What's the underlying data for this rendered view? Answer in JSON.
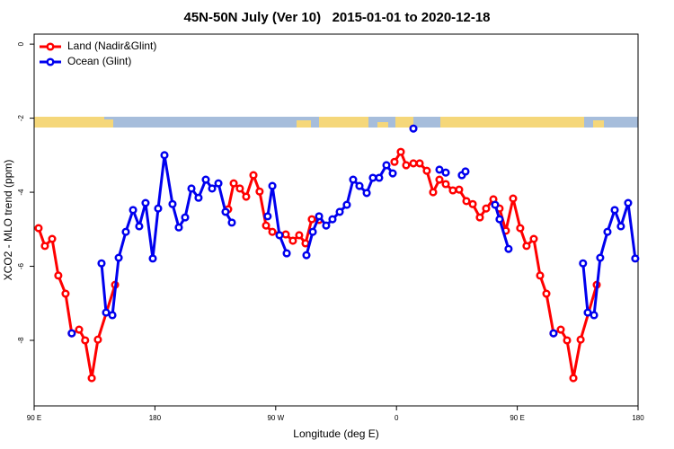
{
  "chart_data": {
    "type": "line",
    "title": "45N-50N July (Ver 10)   2015-01-01 to 2020-12-18",
    "x_label": "Longitude (deg E)",
    "y_label": "XCO2 - MLO trend (ppm)",
    "xlim": [
      90,
      540
    ],
    "xticks": [
      {
        "value": 90,
        "label": "90 E"
      },
      {
        "value": 180,
        "label": "180"
      },
      {
        "value": 270,
        "label": "90 W"
      },
      {
        "value": 360,
        "label": "0"
      },
      {
        "value": 450,
        "label": "90 E"
      },
      {
        "value": 540,
        "label": "180"
      }
    ],
    "ylim": [
      -9.77,
      0.27
    ],
    "yticks": [
      -8,
      -6,
      -4,
      -2,
      0
    ],
    "legend": "top-left",
    "series": [
      {
        "name": "Land (Nadir&Glint)",
        "color": "#ff0000",
        "x": [
          93.3,
          98,
          103.4,
          108,
          113.4,
          118,
          123.5,
          128,
          132.9,
          137.5,
          150.3,
          null,
          234.6,
          238.7,
          243.3,
          248,
          253.4,
          258,
          262.8,
          267.5,
          277.5,
          282.8,
          287.5,
          292.2,
          296.9,
          302.3,
          null,
          358.5,
          363.2,
          367.2,
          372.6,
          377.3,
          382.6,
          387.3,
          392,
          396.7,
          402,
          406.7,
          412.1,
          416.8,
          422.1,
          426.8,
          432.2,
          436.8,
          441.5,
          446.9,
          452.2,
          456.9,
          462.3,
          467,
          471.7,
          477,
          482.4,
          487.1,
          491.8,
          497.2,
          509.2
        ],
        "values": [
          -4.97,
          -5.45,
          -5.26,
          -6.25,
          -6.74,
          -7.81,
          -7.71,
          -8.0,
          -9.02,
          -7.98,
          -6.5,
          null,
          -4.46,
          -3.76,
          -3.9,
          -4.12,
          -3.54,
          -3.98,
          -4.9,
          -5.07,
          -5.14,
          -5.31,
          -5.16,
          -5.38,
          -4.73,
          -4.75,
          null,
          -3.18,
          -2.91,
          -3.27,
          -3.22,
          -3.22,
          -3.42,
          -4.0,
          -3.66,
          -3.78,
          -3.95,
          -3.93,
          -4.24,
          -4.32,
          -4.68,
          -4.44,
          -4.19,
          -4.44,
          -5.04,
          -4.17,
          -4.97,
          -5.45,
          -5.26,
          -6.25,
          -6.74,
          -7.81,
          -7.71,
          -8.0,
          -9.02,
          -7.98,
          -6.5
        ]
      },
      {
        "name": "Ocean (Glint)",
        "color": "#0000ee",
        "x": [
          118,
          null,
          140.2,
          143.6,
          148.3,
          153,
          158.3,
          163.7,
          168.3,
          173,
          178.4,
          182.4,
          187.1,
          193.1,
          197.8,
          202.5,
          207.2,
          212.5,
          217.9,
          222.6,
          227.3,
          232.6,
          237.3,
          null,
          264,
          267.5,
          272.8,
          278.2,
          null,
          292.9,
          297.6,
          302.3,
          307.6,
          312.3,
          317.7,
          323,
          327.7,
          332.4,
          337.8,
          342.4,
          347.1,
          352.5,
          357.2,
          null,
          372.6,
          null,
          392,
          396.7,
          null,
          408.7,
          411.4,
          null,
          433.5,
          436.8,
          443.5,
          null,
          477,
          null,
          499,
          502.5,
          507.2,
          511.8,
          517.2,
          522.6,
          527.2,
          532.6,
          537.9
        ],
        "values": [
          -7.81,
          null,
          -5.92,
          -7.25,
          -7.32,
          -5.77,
          -5.07,
          -4.48,
          -4.92,
          -4.29,
          -5.79,
          -4.44,
          -3.0,
          -4.32,
          -4.95,
          -4.68,
          -3.9,
          -4.15,
          -3.66,
          -3.9,
          -3.76,
          -4.53,
          -4.82,
          null,
          -4.65,
          -3.83,
          -5.16,
          -5.65,
          null,
          -5.7,
          -5.07,
          -4.65,
          -4.9,
          -4.73,
          -4.53,
          -4.34,
          -3.66,
          -3.83,
          -4.02,
          -3.61,
          -3.61,
          -3.27,
          -3.49,
          null,
          -2.28,
          null,
          -3.39,
          -3.47,
          null,
          -3.54,
          -3.44,
          null,
          -4.34,
          -4.73,
          -5.53,
          null,
          -7.81,
          null,
          -5.92,
          -7.25,
          -7.32,
          -5.77,
          -5.07,
          -4.48,
          -4.92,
          -4.29,
          -5.79
        ]
      }
    ]
  }
}
